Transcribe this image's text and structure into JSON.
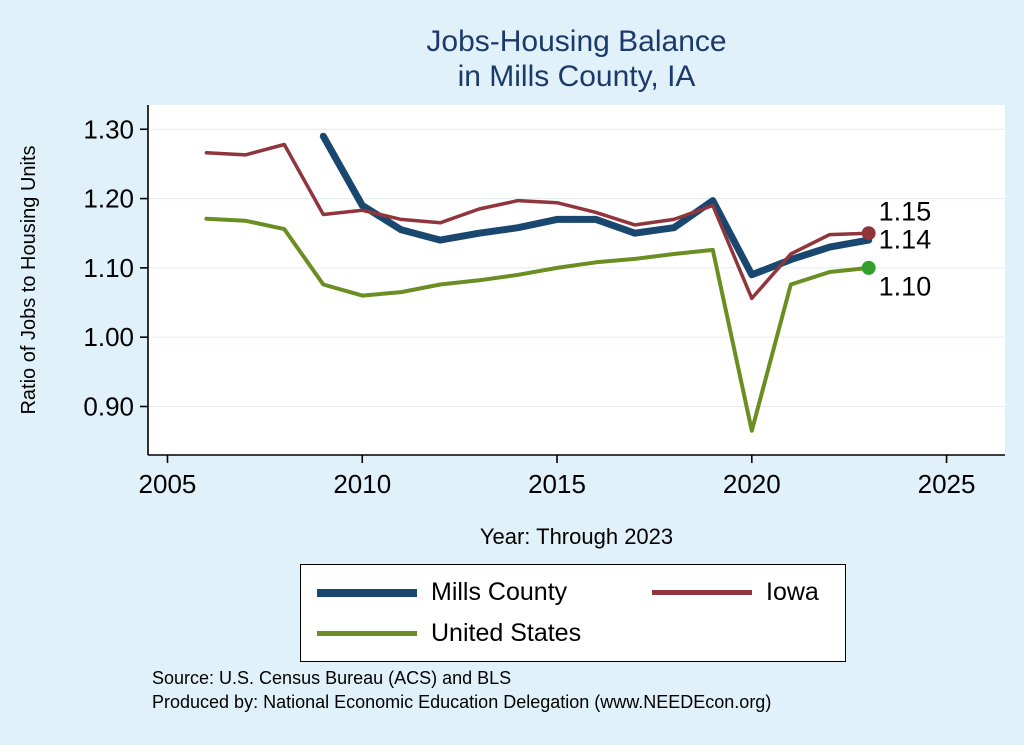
{
  "header": {
    "title_line1": "Jobs-Housing Balance",
    "title_line2": "in Mills County, IA",
    "title_color": "#1b3a6b"
  },
  "colors": {
    "background": "#e1f1f9",
    "plot_background": "#ffffff",
    "axis": "#000000",
    "gridline": "#e2ebee",
    "end_label_text": "#000000"
  },
  "chart_data": {
    "type": "line",
    "title": "Jobs-Housing Balance in Mills County, IA",
    "xlabel": "Year: Through 2023",
    "ylabel": "Ratio of Jobs to Housing Units",
    "xlim": [
      2004.5,
      2026.5
    ],
    "ylim": [
      0.83,
      1.335
    ],
    "xticks": [
      2005,
      2010,
      2015,
      2020,
      2025
    ],
    "yticks": [
      0.9,
      1.0,
      1.1,
      1.2,
      1.3
    ],
    "grid": true,
    "legend_position": "bottom",
    "series": [
      {
        "name": "Mills County",
        "color": "#1a476f",
        "width": 7,
        "x": [
          2009,
          2010,
          2011,
          2012,
          2013,
          2014,
          2015,
          2016,
          2017,
          2018,
          2019,
          2020,
          2021,
          2022,
          2023
        ],
        "y": [
          1.29,
          1.19,
          1.155,
          1.14,
          1.15,
          1.158,
          1.17,
          1.17,
          1.15,
          1.158,
          1.197,
          1.09,
          1.112,
          1.13,
          1.14
        ],
        "end_label": "1.14",
        "end_dot": false,
        "label_y": 1.141
      },
      {
        "name": "Iowa",
        "color": "#90353b",
        "width": 3.5,
        "x": [
          2006,
          2007,
          2008,
          2009,
          2010,
          2011,
          2012,
          2013,
          2014,
          2015,
          2016,
          2017,
          2018,
          2019,
          2020,
          2021,
          2022,
          2023
        ],
        "y": [
          1.266,
          1.263,
          1.278,
          1.177,
          1.183,
          1.17,
          1.165,
          1.185,
          1.197,
          1.194,
          1.18,
          1.162,
          1.17,
          1.19,
          1.056,
          1.12,
          1.148,
          1.15
        ],
        "end_label": "1.15",
        "end_dot": true,
        "dot_color": "#90353b",
        "label_y": 1.181
      },
      {
        "name": "United States",
        "color": "#6b8e23",
        "width": 4,
        "x": [
          2006,
          2007,
          2008,
          2009,
          2010,
          2011,
          2012,
          2013,
          2014,
          2015,
          2016,
          2017,
          2018,
          2019,
          2020,
          2021,
          2022,
          2023
        ],
        "y": [
          1.171,
          1.168,
          1.156,
          1.076,
          1.06,
          1.065,
          1.076,
          1.082,
          1.09,
          1.1,
          1.108,
          1.113,
          1.12,
          1.126,
          0.865,
          1.076,
          1.094,
          1.1
        ],
        "end_label": "1.10",
        "end_dot": true,
        "dot_color": "#33a02c",
        "label_y": 1.073
      }
    ]
  },
  "footer": {
    "source_line1": "Source: U.S. Census Bureau (ACS) and BLS",
    "source_line2": "Produced by: National Economic Education Delegation (www.NEEDEcon.org)"
  }
}
